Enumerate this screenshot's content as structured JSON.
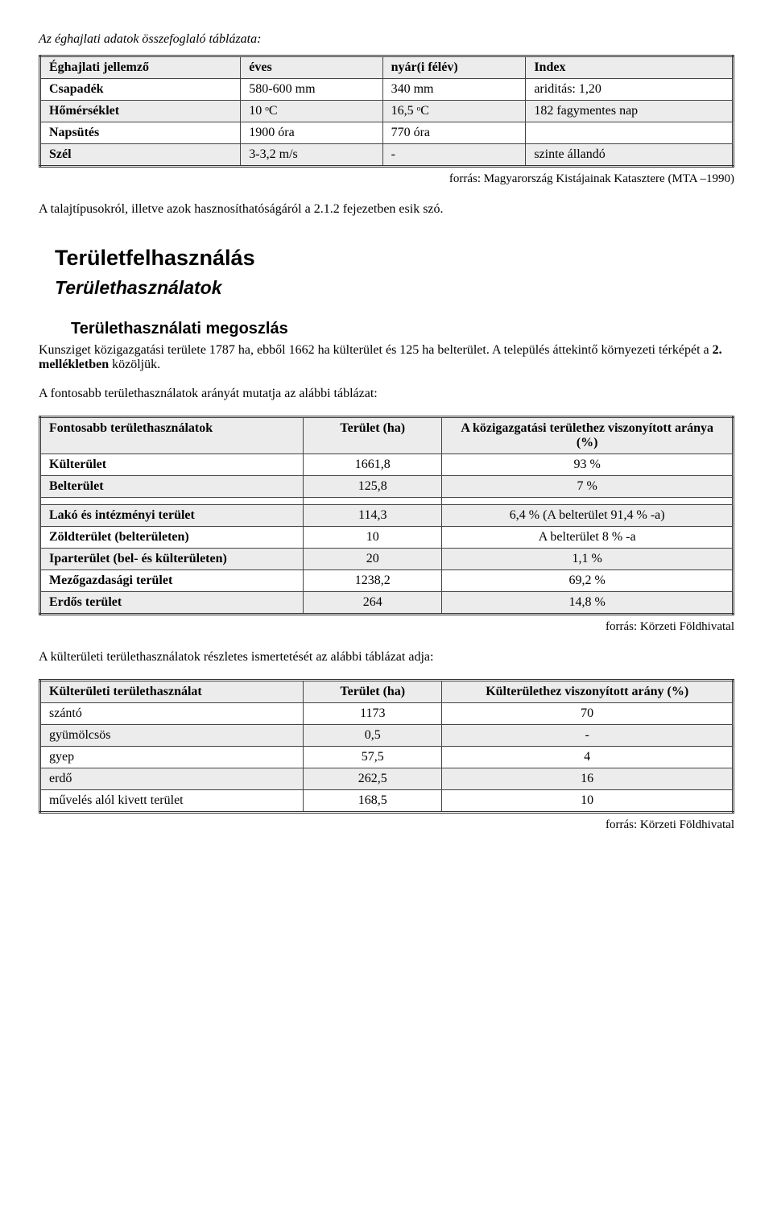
{
  "intro_line": "Az éghajlati adatok összefoglaló táblázata:",
  "table1": {
    "header": [
      "Éghajlati jellemző",
      "éves",
      "nyár(i félév)",
      "Index"
    ],
    "rows": [
      {
        "c0": "Csapadék",
        "c1": "580-600 mm",
        "c2": "340 mm",
        "c3": "ariditás: 1,20",
        "shaded": false
      },
      {
        "c0": "Hőmérséklet",
        "c1": "10 ᵒC",
        "c2": "16,5 ᵒC",
        "c3": "182 fagymentes nap",
        "shaded": true
      },
      {
        "c0": "Napsütés",
        "c1": "1900 óra",
        "c2": "770 óra",
        "c3": "",
        "shaded": false
      },
      {
        "c0": "Szél",
        "c1": "3-3,2 m/s",
        "c2": "-",
        "c3": "szinte állandó",
        "shaded": true
      }
    ]
  },
  "source1": "forrás: Magyarország Kistájainak Katasztere (MTA –1990)",
  "para1": "A talajtípusokról, illetve azok hasznosíthatóságáról a 2.1.2 fejezetben esik szó.",
  "h1": "Területfelhasználás",
  "h2": "Területhasználatok",
  "h3": "Területhasználati megoszlás",
  "para2a": "Kunsziget közigazgatási területe 1787 ha, ebből 1662 ha külterület és 125 ha belterület. A település áttekintő környezeti térképét a ",
  "para2b_bold": "2. mellékletben",
  "para2c": " közöljük.",
  "para3": "A fontosabb területhasználatok arányát mutatja az alábbi táblázat:",
  "table2": {
    "header": [
      "Fontosabb területhasználatok",
      "Terület (ha)",
      "A közigazgatási területhez viszonyított aránya (%)"
    ],
    "rows": [
      {
        "c0": "Külterület",
        "c1": "1661,8",
        "c2": "93 %",
        "shaded": false
      },
      {
        "c0": "Belterület",
        "c1": "125,8",
        "c2": "7 %",
        "shaded": true
      },
      {
        "c0": "",
        "c1": "",
        "c2": "",
        "shaded": false
      },
      {
        "c0": "Lakó és intézményi terület",
        "c1": "114,3",
        "c2": "6,4 % (A belterület 91,4 % -a)",
        "shaded": true
      },
      {
        "c0": "Zöldterület (belterületen)",
        "c1": "10",
        "c2": "A belterület 8 % -a",
        "shaded": false
      },
      {
        "c0": "Iparterület (bel- és külterületen)",
        "c1": "20",
        "c2": "1,1 %",
        "shaded": true
      },
      {
        "c0": "Mezőgazdasági terület",
        "c1": "1238,2",
        "c2": "69,2 %",
        "shaded": false
      },
      {
        "c0": "Erdős terület",
        "c1": "264",
        "c2": "14,8 %",
        "shaded": true
      }
    ]
  },
  "source2": "forrás: Körzeti Földhivatal",
  "para4": "A külterületi területhasználatok részletes ismertetését az alábbi táblázat adja:",
  "table3": {
    "header": [
      "Külterületi területhasználat",
      "Terület (ha)",
      "Külterülethez viszonyított arány (%)"
    ],
    "rows": [
      {
        "c0": "szántó",
        "c1": "1173",
        "c2": "70",
        "shaded": false
      },
      {
        "c0": "gyümölcsös",
        "c1": "0,5",
        "c2": "-",
        "shaded": true
      },
      {
        "c0": "gyep",
        "c1": "57,5",
        "c2": "4",
        "shaded": false
      },
      {
        "c0": "erdő",
        "c1": "262,5",
        "c2": "16",
        "shaded": true
      },
      {
        "c0": "művelés alól kivett terület",
        "c1": "168,5",
        "c2": "10",
        "shaded": false
      }
    ]
  },
  "source3": "forrás: Körzeti Földhivatal",
  "colors": {
    "page_bg": "#ffffff",
    "text": "#000000",
    "table_border": "#444444",
    "shade": "#ececec"
  }
}
